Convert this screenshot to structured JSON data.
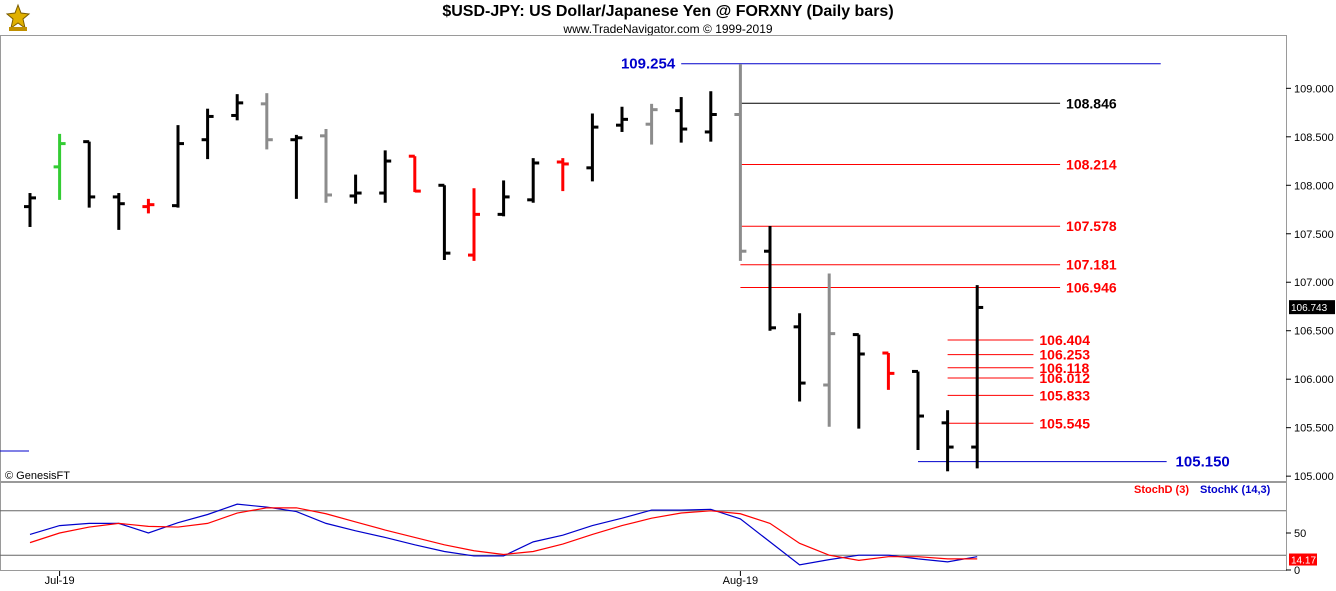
{
  "header": {
    "title": "$USD-JPY:  US Dollar/Japanese Yen @ FORXNY  (Daily bars)",
    "subtitle": "www.TradeNavigator.com © 1999-2019",
    "logo_icon": "trade-navigator-logo-icon"
  },
  "copyright": "© GenesisFT",
  "colors": {
    "up_bar": "#000000",
    "gray_bar": "#8c8c8c",
    "red_bar": "#ff0000",
    "green_bar": "#33cc33",
    "blue_line": "#0000cc",
    "red_line": "#dd0000",
    "last_price_bg": "#000000",
    "stoch_k": "#0000cc",
    "stoch_d": "#dd0000"
  },
  "chart_data": [
    {
      "type": "ohlc",
      "title": "$USD-JPY:  US Dollar/Japanese Yen @ FORXNY  (Daily bars)",
      "ylim": [
        104.95,
        109.55
      ],
      "y_ticks": [
        "105.000",
        "105.500",
        "106.000",
        "106.500",
        "107.000",
        "107.500",
        "108.000",
        "108.500",
        "109.000"
      ],
      "x_labels": [
        {
          "label": "Jul-19",
          "bar_index": 1
        },
        {
          "label": "Aug-19",
          "bar_index": 24
        }
      ],
      "last_price": "106.743",
      "bars": [
        {
          "o": 107.78,
          "h": 107.92,
          "l": 107.57,
          "c": 107.87,
          "color": "black"
        },
        {
          "o": 108.19,
          "h": 108.53,
          "l": 107.85,
          "c": 108.43,
          "color": "green"
        },
        {
          "o": 108.45,
          "h": 108.45,
          "l": 107.77,
          "c": 107.88,
          "color": "black"
        },
        {
          "o": 107.88,
          "h": 107.92,
          "l": 107.54,
          "c": 107.81,
          "color": "black"
        },
        {
          "o": 107.78,
          "h": 107.86,
          "l": 107.71,
          "c": 107.8,
          "color": "red"
        },
        {
          "o": 107.79,
          "h": 108.62,
          "l": 107.77,
          "c": 108.43,
          "color": "black"
        },
        {
          "o": 108.47,
          "h": 108.79,
          "l": 108.27,
          "c": 108.71,
          "color": "black"
        },
        {
          "o": 108.72,
          "h": 108.94,
          "l": 108.67,
          "c": 108.85,
          "color": "black"
        },
        {
          "o": 108.84,
          "h": 108.95,
          "l": 108.37,
          "c": 108.47,
          "color": "gray"
        },
        {
          "o": 108.47,
          "h": 108.52,
          "l": 107.86,
          "c": 108.49,
          "color": "black"
        },
        {
          "o": 108.51,
          "h": 108.58,
          "l": 107.82,
          "c": 107.9,
          "color": "gray"
        },
        {
          "o": 107.89,
          "h": 108.11,
          "l": 107.81,
          "c": 107.92,
          "color": "black"
        },
        {
          "o": 107.92,
          "h": 108.36,
          "l": 107.82,
          "c": 108.25,
          "color": "black"
        },
        {
          "o": 108.3,
          "h": 108.3,
          "l": 107.93,
          "c": 107.94,
          "color": "red"
        },
        {
          "o": 108.0,
          "h": 108.0,
          "l": 107.23,
          "c": 107.3,
          "color": "black"
        },
        {
          "o": 107.28,
          "h": 107.97,
          "l": 107.22,
          "c": 107.7,
          "color": "red"
        },
        {
          "o": 107.7,
          "h": 108.05,
          "l": 107.68,
          "c": 107.88,
          "color": "black"
        },
        {
          "o": 107.85,
          "h": 108.28,
          "l": 107.82,
          "c": 108.23,
          "color": "black"
        },
        {
          "o": 108.24,
          "h": 108.28,
          "l": 107.94,
          "c": 108.22,
          "color": "red"
        },
        {
          "o": 108.18,
          "h": 108.74,
          "l": 108.04,
          "c": 108.6,
          "color": "black"
        },
        {
          "o": 108.62,
          "h": 108.81,
          "l": 108.55,
          "c": 108.68,
          "color": "black"
        },
        {
          "o": 108.63,
          "h": 108.84,
          "l": 108.42,
          "c": 108.78,
          "color": "gray"
        },
        {
          "o": 108.77,
          "h": 108.91,
          "l": 108.44,
          "c": 108.58,
          "color": "black"
        },
        {
          "o": 108.55,
          "h": 108.97,
          "l": 108.45,
          "c": 108.73,
          "color": "black"
        },
        {
          "o": 108.73,
          "h": 109.25,
          "l": 107.22,
          "c": 107.32,
          "color": "gray"
        },
        {
          "o": 107.32,
          "h": 107.58,
          "l": 106.5,
          "c": 106.53,
          "color": "black"
        },
        {
          "o": 106.54,
          "h": 106.68,
          "l": 105.77,
          "c": 105.96,
          "color": "black"
        },
        {
          "o": 105.94,
          "h": 107.09,
          "l": 105.51,
          "c": 106.47,
          "color": "gray"
        },
        {
          "o": 106.46,
          "h": 106.46,
          "l": 105.49,
          "c": 106.26,
          "color": "black"
        },
        {
          "o": 106.27,
          "h": 106.27,
          "l": 105.89,
          "c": 106.06,
          "color": "red"
        },
        {
          "o": 106.08,
          "h": 106.08,
          "l": 105.27,
          "c": 105.62,
          "color": "black"
        },
        {
          "o": 105.55,
          "h": 105.68,
          "l": 105.05,
          "c": 105.3,
          "color": "black"
        },
        {
          "o": 105.3,
          "h": 106.97,
          "l": 105.08,
          "c": 106.74,
          "color": "black"
        }
      ],
      "levels": [
        {
          "value": 109.254,
          "label": "109.254",
          "color": "blue",
          "from_bar": 22.0,
          "to_bar": 38.2,
          "label_side": "left",
          "label_bar": 22.0
        },
        {
          "value": 108.846,
          "label": "108.846",
          "color": "black",
          "from_bar": 24.0,
          "to_bar": 34.8,
          "label_side": "right",
          "label_bar": 34.9
        },
        {
          "value": 108.214,
          "label": "108.214",
          "color": "red",
          "from_bar": 24.0,
          "to_bar": 34.8,
          "label_side": "right",
          "label_bar": 34.9
        },
        {
          "value": 107.578,
          "label": "107.578",
          "color": "red",
          "from_bar": 24.0,
          "to_bar": 34.8,
          "label_side": "right",
          "label_bar": 34.9
        },
        {
          "value": 107.181,
          "label": "107.181",
          "color": "red",
          "from_bar": 24.0,
          "to_bar": 34.8,
          "label_side": "right",
          "label_bar": 34.9
        },
        {
          "value": 106.946,
          "label": "106.946",
          "color": "red",
          "from_bar": 24.0,
          "to_bar": 34.8,
          "label_side": "right",
          "label_bar": 34.9
        },
        {
          "value": 106.404,
          "label": "106.404",
          "color": "red",
          "from_bar": 31.0,
          "to_bar": 33.9,
          "label_side": "right",
          "label_bar": 34.0
        },
        {
          "value": 106.253,
          "label": "106.253",
          "color": "red",
          "from_bar": 31.0,
          "to_bar": 33.9,
          "label_side": "right",
          "label_bar": 34.0
        },
        {
          "value": 106.118,
          "label": "106.118",
          "color": "red",
          "from_bar": 31.0,
          "to_bar": 33.9,
          "label_side": "right",
          "label_bar": 34.0
        },
        {
          "value": 106.012,
          "label": "106.012",
          "color": "red",
          "from_bar": 31.0,
          "to_bar": 33.9,
          "label_side": "right",
          "label_bar": 34.0
        },
        {
          "value": 105.833,
          "label": "105.833",
          "color": "red",
          "from_bar": 31.0,
          "to_bar": 33.9,
          "label_side": "right",
          "label_bar": 34.0
        },
        {
          "value": 105.545,
          "label": "105.545",
          "color": "red",
          "from_bar": 31.0,
          "to_bar": 33.9,
          "label_side": "right",
          "label_bar": 34.0
        },
        {
          "value": 105.15,
          "label": "105.150",
          "color": "blue",
          "from_bar": 30.0,
          "to_bar": 38.4,
          "label_side": "right",
          "label_bar": 38.6
        }
      ]
    },
    {
      "type": "line",
      "ylim": [
        0,
        100
      ],
      "y_ticks": [
        "50",
        "0"
      ],
      "legend": [
        {
          "label": "StochD (3)",
          "color": "red"
        },
        {
          "label": "StochK (14,3)",
          "color": "blue"
        }
      ],
      "reference_lines": [
        80,
        20
      ],
      "last_value": "14.17",
      "series": [
        {
          "name": "StochK (14,3)",
          "color": "blue",
          "values": [
            48,
            60,
            63,
            63,
            50,
            64,
            75,
            89,
            85,
            79,
            63,
            53,
            44,
            34,
            25,
            19,
            19,
            38,
            47,
            60,
            70,
            81,
            81,
            82,
            69,
            38,
            7,
            14,
            20,
            20,
            15,
            11,
            18
          ]
        },
        {
          "name": "StochD (3)",
          "color": "red",
          "values": [
            37,
            50,
            58,
            63,
            59,
            58,
            63,
            77,
            84,
            84,
            76,
            65,
            54,
            44,
            34,
            26,
            21,
            25,
            35,
            48,
            60,
            70,
            77,
            80,
            76,
            63,
            36,
            20,
            13,
            18,
            18,
            15,
            15
          ]
        }
      ]
    }
  ]
}
